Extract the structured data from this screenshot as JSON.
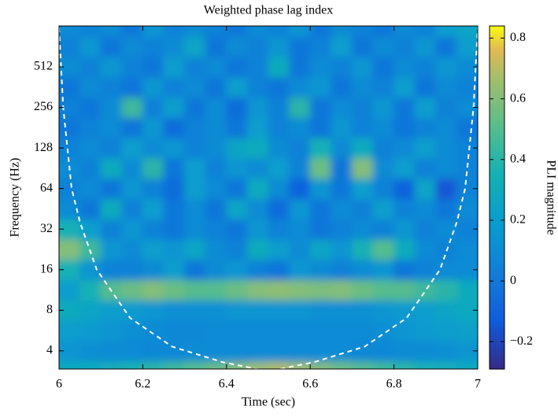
{
  "chart_data": {
    "type": "heatmap",
    "title": "Weighted phase lag index",
    "xlabel": "Time (sec)",
    "ylabel": "Frequency (Hz)",
    "x": [
      6.025,
      6.075,
      6.125,
      6.175,
      6.225,
      6.275,
      6.325,
      6.375,
      6.425,
      6.475,
      6.525,
      6.575,
      6.625,
      6.675,
      6.725,
      6.775,
      6.825,
      6.875,
      6.925,
      6.975
    ],
    "y": [
      2.8,
      4,
      5.7,
      8,
      11.3,
      16,
      22.6,
      32,
      45.3,
      64,
      90.5,
      128,
      181,
      256,
      362,
      512,
      724,
      1024
    ],
    "values": [
      [
        0.3,
        0.3,
        0.32,
        0.35,
        0.4,
        0.45,
        0.5,
        0.55,
        0.6,
        0.65,
        0.68,
        0.65,
        0.6,
        0.55,
        0.5,
        0.45,
        0.4,
        0.35,
        0.32,
        0.3
      ],
      [
        0.15,
        0.12,
        0.1,
        0.1,
        0.08,
        0.08,
        0.1,
        0.1,
        0.1,
        0.1,
        0.1,
        0.1,
        0.1,
        0.1,
        0.08,
        0.08,
        0.1,
        0.1,
        0.12,
        0.15
      ],
      [
        0.2,
        0.18,
        0.15,
        0.12,
        0.1,
        0.08,
        0.08,
        0.1,
        0.1,
        0.1,
        0.1,
        0.1,
        0.1,
        0.1,
        0.1,
        0.12,
        0.15,
        0.18,
        0.2,
        0.22
      ],
      [
        0.3,
        0.25,
        0.2,
        0.18,
        0.15,
        0.12,
        0.12,
        0.12,
        0.15,
        0.15,
        0.15,
        0.15,
        0.12,
        0.12,
        0.12,
        0.15,
        0.18,
        0.2,
        0.25,
        0.28
      ],
      [
        0.2,
        0.35,
        0.5,
        0.55,
        0.6,
        0.55,
        0.5,
        0.5,
        0.55,
        0.6,
        0.62,
        0.6,
        0.58,
        0.6,
        0.55,
        0.5,
        0.5,
        0.45,
        0.4,
        0.3
      ],
      [
        0.35,
        0.15,
        0.05,
        0.05,
        0.1,
        0.2,
        0.0,
        0.1,
        0.15,
        0.05,
        0.0,
        0.15,
        0.1,
        0.05,
        0.1,
        0.15,
        0.0,
        0.05,
        0.1,
        0.1
      ],
      [
        0.6,
        0.45,
        0.15,
        0.1,
        0.2,
        0.15,
        0.25,
        0.1,
        0.05,
        0.3,
        0.2,
        0.1,
        0.25,
        0.15,
        0.35,
        0.5,
        0.3,
        0.1,
        0.05,
        0.1
      ],
      [
        0.35,
        0.2,
        0.05,
        0.15,
        0.05,
        0.0,
        0.1,
        0.05,
        0.0,
        0.15,
        0.05,
        0.1,
        0.0,
        0.05,
        0.1,
        0.05,
        0.15,
        0.05,
        0.1,
        0.05
      ],
      [
        0.1,
        0.0,
        0.3,
        0.05,
        0.2,
        0.0,
        0.1,
        0.0,
        0.25,
        0.1,
        -0.05,
        0.15,
        0.0,
        0.1,
        0.05,
        0.2,
        0.05,
        0.1,
        0.0,
        0.1
      ],
      [
        0.05,
        0.1,
        0.0,
        0.15,
        0.05,
        -0.05,
        0.2,
        0.1,
        0.0,
        0.3,
        0.1,
        -0.1,
        0.15,
        0.0,
        0.2,
        0.05,
        -0.1,
        0.25,
        -0.15,
        0.05
      ],
      [
        0.1,
        0.05,
        0.3,
        0.1,
        0.4,
        0.0,
        0.2,
        0.05,
        0.15,
        0.1,
        0.2,
        0.05,
        0.55,
        0.0,
        0.6,
        0.1,
        0.2,
        0.05,
        0.1,
        0.05
      ],
      [
        0.05,
        0.1,
        0.05,
        0.2,
        0.1,
        0.15,
        0.05,
        0.1,
        0.25,
        0.3,
        0.1,
        0.05,
        0.35,
        0.1,
        0.3,
        0.05,
        0.1,
        0.2,
        0.1,
        0.05
      ],
      [
        0.0,
        0.05,
        0.1,
        0.0,
        0.15,
        -0.05,
        0.05,
        0.1,
        0.0,
        0.2,
        0.05,
        0.1,
        0.0,
        0.15,
        0.05,
        0.1,
        0.0,
        0.05,
        0.1,
        0.0
      ],
      [
        0.05,
        0.0,
        0.1,
        0.45,
        0.05,
        0.2,
        0.0,
        0.1,
        -0.05,
        0.15,
        0.05,
        0.4,
        0.0,
        0.1,
        0.05,
        0.15,
        0.0,
        0.2,
        0.05,
        0.1
      ],
      [
        0.0,
        0.1,
        0.05,
        0.0,
        0.15,
        0.05,
        0.1,
        0.0,
        0.2,
        0.05,
        0.0,
        0.1,
        0.15,
        0.0,
        0.1,
        0.05,
        0.2,
        0.0,
        0.1,
        0.05
      ],
      [
        0.1,
        0.05,
        0.15,
        0.05,
        0.0,
        0.2,
        0.05,
        0.1,
        0.0,
        0.05,
        0.3,
        0.0,
        0.1,
        0.05,
        0.15,
        0.0,
        0.1,
        0.05,
        0.15,
        0.1
      ],
      [
        0.05,
        0.15,
        0.0,
        0.1,
        0.05,
        0.1,
        0.25,
        0.0,
        0.1,
        0.05,
        0.15,
        0.0,
        0.05,
        0.2,
        0.0,
        0.1,
        0.05,
        0.15,
        0.0,
        0.2
      ],
      [
        0.1,
        0.05,
        0.1,
        0.0,
        0.15,
        0.05,
        0.1,
        0.05,
        0.0,
        0.1,
        0.05,
        0.15,
        0.0,
        0.1,
        0.05,
        0.0,
        0.1,
        0.05,
        0.2,
        0.25
      ]
    ],
    "xlim": [
      6,
      7
    ],
    "ylim": [
      2.93,
      1030
    ],
    "xticks": [
      6,
      6.2,
      6.4,
      6.6,
      6.8,
      7
    ],
    "yticks": [
      4,
      8,
      16,
      32,
      64,
      128,
      256,
      512
    ],
    "yscale": "log2",
    "colormap": "parula",
    "colorbar": {
      "label": "PLI magnitude",
      "lim": [
        -0.29,
        0.84
      ],
      "ticks": [
        {
          "value": -0.2,
          "label": "−0.2"
        },
        0,
        0.2,
        0.4,
        0.6,
        0.8
      ]
    },
    "cone_of_influence": {
      "x": [
        6.0,
        6.01,
        6.03,
        6.05,
        6.09,
        6.17,
        6.27,
        6.39,
        6.48,
        6.52,
        6.61,
        6.73,
        6.83,
        6.91,
        6.95,
        6.97,
        6.99,
        7.0
      ],
      "y": [
        1000,
        256,
        64,
        36,
        16,
        7,
        4.3,
        3.3,
        2.9,
        2.9,
        3.3,
        4.3,
        7,
        16,
        36,
        64,
        256,
        1000
      ],
      "color": "#ffffff"
    }
  }
}
